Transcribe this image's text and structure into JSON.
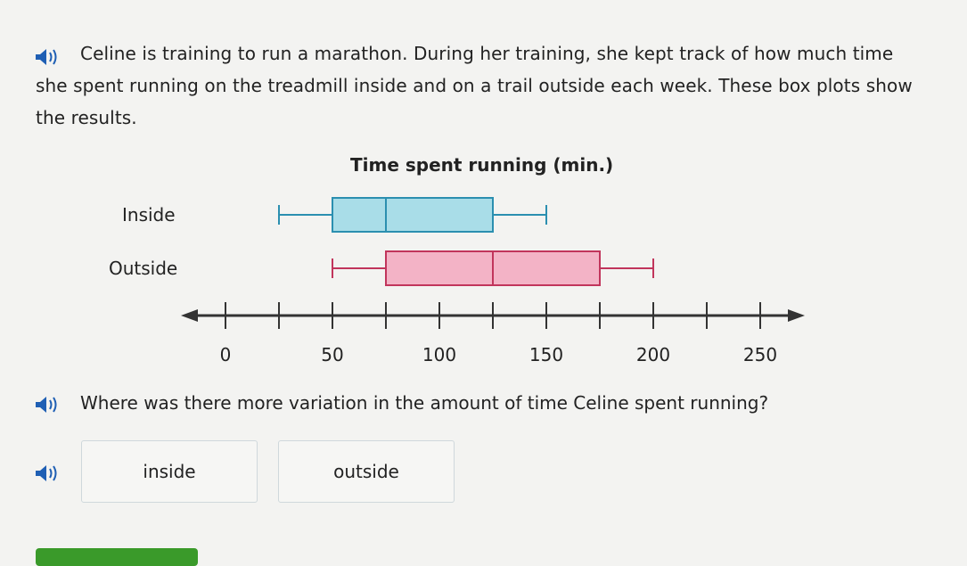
{
  "prompt": {
    "text": "Celine is training to run a marathon. During her training, she kept track of how much time she spent running on the treadmill inside and on a trail outside each week. These box plots show the results."
  },
  "question": {
    "text": "Where was there more variation in the amount of time Celine spent running?"
  },
  "choices": [
    "inside",
    "outside"
  ],
  "icons": {
    "speaker": "speaker-icon"
  },
  "colors": {
    "inside_fill": "#a9dde8",
    "inside_stroke": "#2b8fb0",
    "outside_fill": "#f3b3c6",
    "outside_stroke": "#c1355c",
    "submit": "#3a9a2a"
  },
  "chart_data": {
    "type": "boxplot",
    "title": "Time spent running (min.)",
    "xlim": [
      0,
      250
    ],
    "ticks": [
      0,
      25,
      50,
      75,
      100,
      125,
      150,
      175,
      200,
      225,
      250
    ],
    "tick_labels": [
      "0",
      "50",
      "100",
      "150",
      "200",
      "250"
    ],
    "series": [
      {
        "name": "Inside",
        "min": 25,
        "q1": 50,
        "median": 75,
        "q3": 125,
        "max": 150
      },
      {
        "name": "Outside",
        "min": 50,
        "q1": 75,
        "median": 125,
        "q3": 175,
        "max": 200
      }
    ]
  }
}
